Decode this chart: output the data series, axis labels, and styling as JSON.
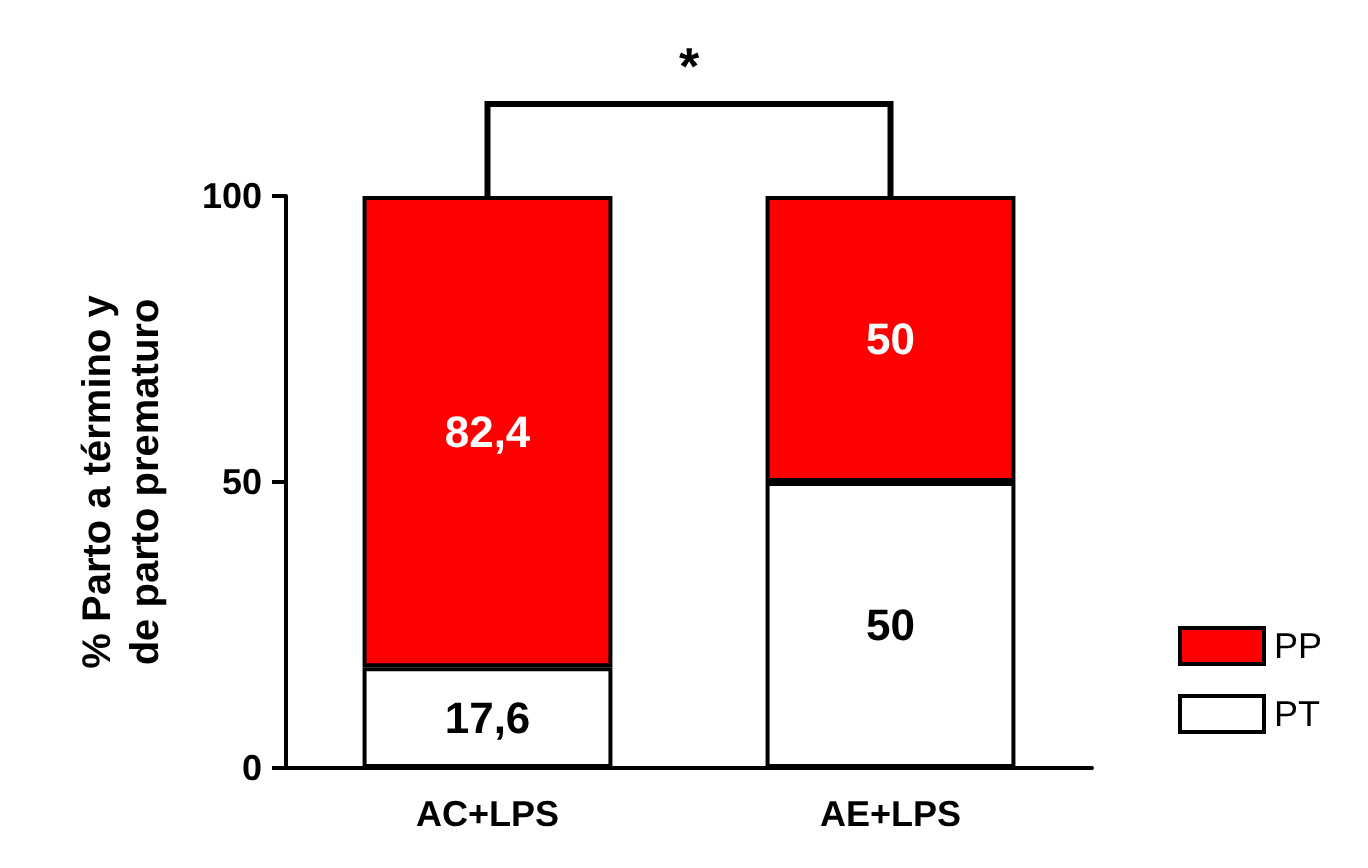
{
  "chart_data": {
    "type": "bar",
    "stacked": true,
    "ylabel": "% Parto a término y\nde parto prematuro",
    "categories": [
      "AC+LPS",
      "AE+LPS"
    ],
    "series": [
      {
        "name": "PT",
        "color": "#ffffff",
        "values": [
          17.6,
          50
        ],
        "value_labels": [
          "17,6",
          "50"
        ]
      },
      {
        "name": "PP",
        "color": "#ff0000",
        "values": [
          82.4,
          50
        ],
        "value_labels": [
          "82,4",
          "50"
        ]
      }
    ],
    "ylim": [
      0,
      100
    ],
    "yticks": [
      0,
      50,
      100
    ],
    "grid": false,
    "legend": "bottom right",
    "annotations": [
      "*"
    ]
  }
}
